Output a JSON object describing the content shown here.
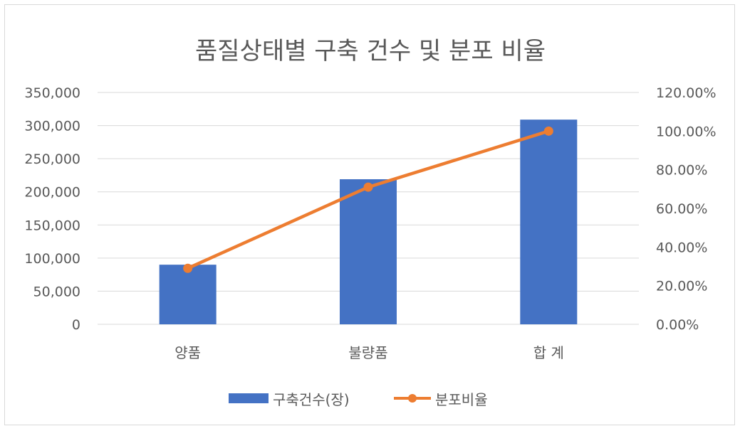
{
  "chart_data": {
    "type": "bar",
    "title": "품질상태별 구축 건수 및 분포 비율",
    "categories": [
      "양품",
      "불량품",
      "합 계"
    ],
    "series": [
      {
        "name": "구축건수(장)",
        "kind": "bar",
        "axis": "left",
        "color": "#4472C4",
        "values": [
          90000,
          219000,
          309000
        ]
      },
      {
        "name": "분포비율",
        "kind": "line",
        "axis": "right",
        "color": "#ED7D31",
        "values": [
          0.29,
          0.71,
          1.0
        ]
      }
    ],
    "y_left": {
      "ylim": [
        0,
        350000
      ],
      "ticks": [
        "0",
        "50,000",
        "100,000",
        "150,000",
        "200,000",
        "250,000",
        "300,000",
        "350,000"
      ]
    },
    "y_right": {
      "ylim": [
        0,
        1.2
      ],
      "ticks": [
        "0.00%",
        "20.00%",
        "40.00%",
        "60.00%",
        "80.00%",
        "100.00%",
        "120.00%"
      ]
    },
    "grid": true,
    "legend_position": "bottom"
  }
}
